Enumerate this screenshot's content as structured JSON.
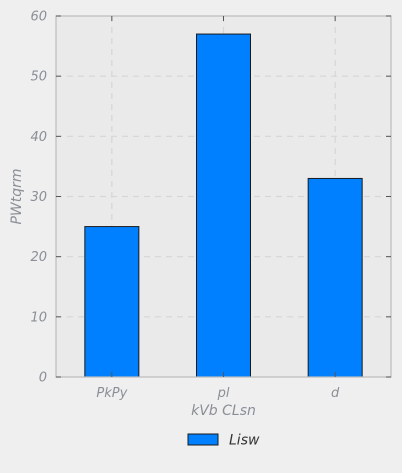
{
  "chart_data": {
    "type": "bar",
    "title": "",
    "xlabel": "kVb CLsn",
    "ylabel": "PWtqrm",
    "categories": [
      "PkPy",
      "pl",
      "d"
    ],
    "series": [
      {
        "name": "Lisw",
        "values": [
          25,
          57,
          33
        ]
      }
    ],
    "ylim": [
      0,
      60
    ],
    "yticks": [
      0,
      10,
      20,
      30,
      40,
      50,
      60
    ],
    "grid": true,
    "legend": "bottom-center",
    "colors": {
      "bar_fill": "#0080ff",
      "bar_stroke": "#1a1a1a",
      "plot_background": "#eaeaea",
      "page_background": "#efefef",
      "grid": "#d6d6d6",
      "axis_frame": "#bcbcbc",
      "tick_label": "#8a8f96"
    }
  }
}
